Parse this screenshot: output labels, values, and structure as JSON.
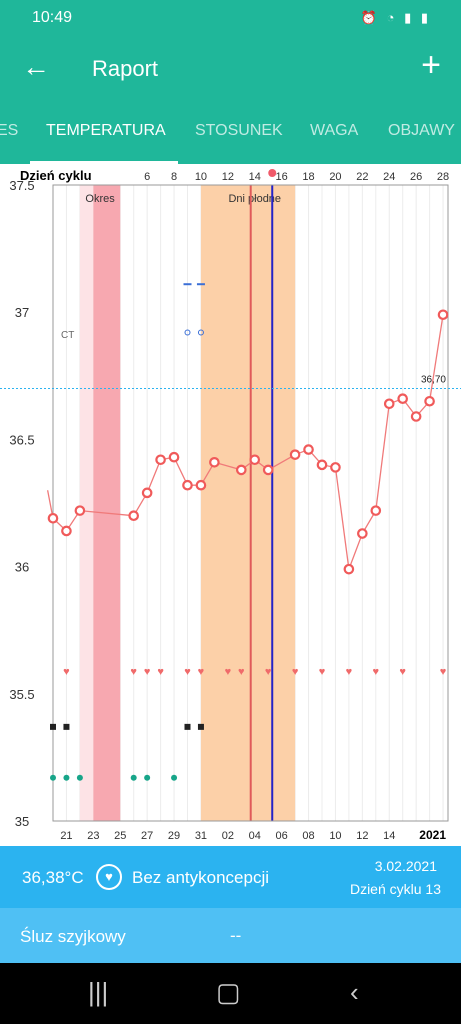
{
  "status_bar": {
    "time": "10:49",
    "icons": [
      "whatsapp-icon",
      "alarm-icon",
      "wifi-icon",
      "signal-icon",
      "battery-icon"
    ]
  },
  "app_bar": {
    "title": "Raport",
    "back_icon": "arrow-left-icon",
    "add_icon": "plus-icon"
  },
  "tabs": [
    {
      "label": "ES",
      "active": false
    },
    {
      "label": "TEMPERATURA",
      "active": true
    },
    {
      "label": "STOSUNEK",
      "active": false
    },
    {
      "label": "WAGA",
      "active": false
    },
    {
      "label": "OBJAWY",
      "active": false
    }
  ],
  "colors": {
    "primary": "#1fb79a",
    "accent_blue": "#2bb3f0",
    "line": "#f07a7a",
    "period": "#f7a8b0",
    "fertile": "#fcd0a8"
  },
  "chart_data": {
    "type": "line",
    "header_label": "Dzień cyklu",
    "cycle_day_ticks": [
      "6",
      "8",
      "10",
      "12",
      "14",
      "16",
      "18",
      "20",
      "22",
      "24",
      "26",
      "28"
    ],
    "date_ticks": [
      "21",
      "23",
      "25",
      "27",
      "29",
      "31",
      "02",
      "04",
      "06",
      "08",
      "10",
      "12",
      "14"
    ],
    "year_label": "2021",
    "y_ticks": [
      "37.5",
      "37",
      "36.5",
      "36",
      "35.5",
      "35"
    ],
    "ylim": [
      35,
      37.5
    ],
    "series": [
      {
        "x": [
          0,
          1,
          2,
          6,
          7,
          8,
          9,
          10,
          11,
          12,
          14,
          15,
          16,
          18,
          19,
          20,
          21,
          22,
          23,
          24,
          25,
          26,
          27,
          28,
          29
        ],
        "y": [
          36.19,
          36.14,
          36.22,
          36.2,
          36.29,
          36.42,
          36.43,
          36.32,
          36.32,
          36.41,
          36.38,
          36.42,
          36.38,
          36.44,
          36.46,
          36.4,
          36.39,
          35.99,
          36.13,
          36.22,
          36.64,
          36.66,
          36.59,
          36.65,
          36.99
        ]
      }
    ],
    "coverline": {
      "value": 36.7,
      "label": "36,70"
    },
    "period_label": "Okres",
    "fertile_label": "Dni płodne",
    "ct_label": "CT",
    "marker_rows": [
      {
        "symbol": "dash",
        "x": [
          10,
          11
        ]
      },
      {
        "symbol": "circle",
        "x": [
          10,
          11
        ]
      },
      {
        "symbol": "heart",
        "x": [
          1,
          6,
          7,
          8,
          10,
          11,
          13,
          14,
          16,
          18,
          20,
          22,
          24,
          26,
          29
        ]
      },
      {
        "symbol": "square",
        "x": [
          0,
          1,
          10,
          11
        ]
      },
      {
        "symbol": "dot",
        "x": [
          0,
          1,
          2,
          6,
          7,
          9
        ]
      }
    ]
  },
  "summary": {
    "temperature": "36,38°C",
    "contraception": "Bez antykoncepcji",
    "date": "3.02.2021",
    "cycle_day": "Dzień cyklu 13",
    "mucus_label": "Śluz szyjkowy",
    "mucus_value": "--"
  },
  "nav_bar": {
    "recent_icon": "recent-apps-icon",
    "home_icon": "home-icon",
    "back_icon": "back-icon"
  }
}
